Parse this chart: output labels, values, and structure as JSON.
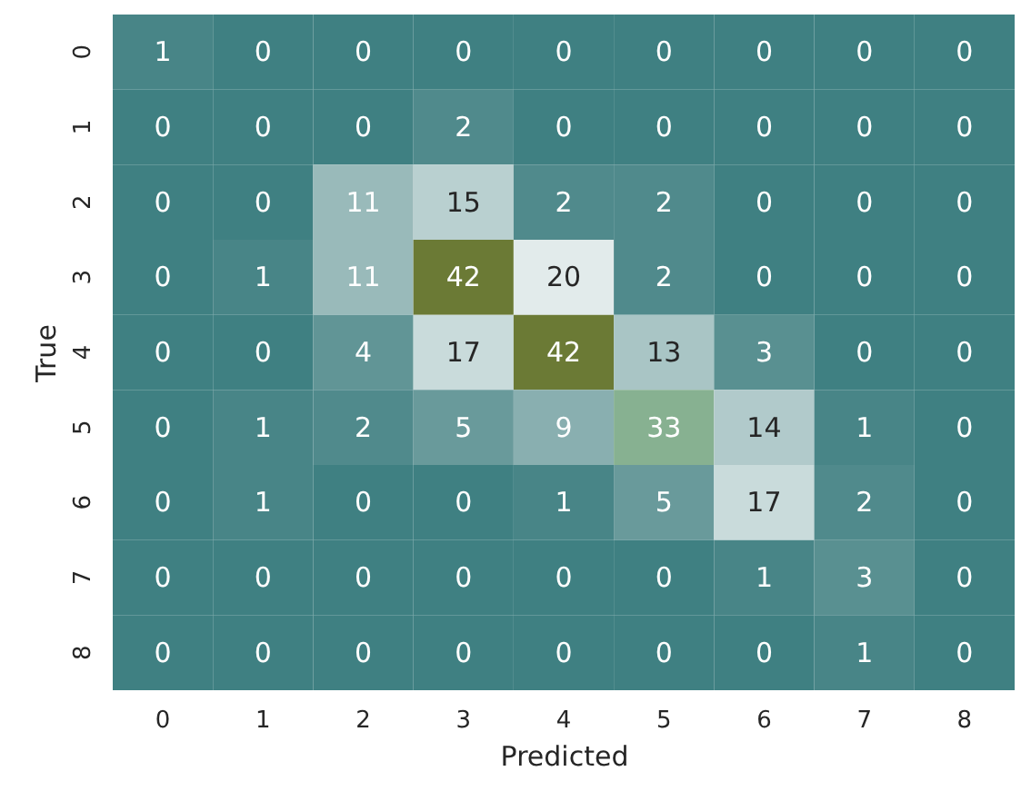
{
  "chart_data": {
    "type": "heatmap",
    "xlabel": "Predicted",
    "ylabel": "True",
    "categories": [
      "0",
      "1",
      "2",
      "3",
      "4",
      "5",
      "6",
      "7",
      "8"
    ],
    "y_categories": [
      "0",
      "1",
      "2",
      "3",
      "4",
      "5",
      "6",
      "7",
      "8"
    ],
    "cells": [
      [
        1,
        0,
        0,
        0,
        0,
        0,
        0,
        0,
        0
      ],
      [
        0,
        0,
        0,
        2,
        0,
        0,
        0,
        0,
        0
      ],
      [
        0,
        0,
        11,
        15,
        2,
        2,
        0,
        0,
        0
      ],
      [
        0,
        1,
        11,
        42,
        20,
        2,
        0,
        0,
        0
      ],
      [
        0,
        0,
        4,
        17,
        42,
        13,
        3,
        0,
        0
      ],
      [
        0,
        1,
        2,
        5,
        9,
        33,
        14,
        1,
        0
      ],
      [
        0,
        1,
        0,
        0,
        1,
        5,
        17,
        2,
        0
      ],
      [
        0,
        0,
        0,
        0,
        0,
        0,
        1,
        3,
        0
      ],
      [
        0,
        0,
        0,
        0,
        0,
        0,
        0,
        1,
        0
      ]
    ],
    "data_labels": true
  }
}
